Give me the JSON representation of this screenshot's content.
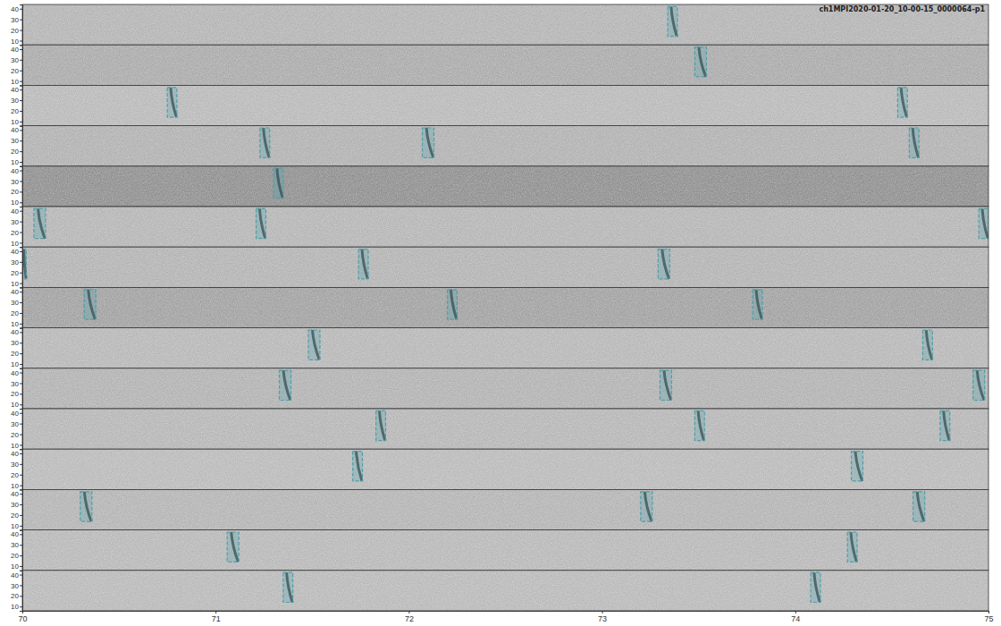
{
  "chart_data": {
    "type": "spectrogram",
    "title": "ch1MPI2020-01-20_10-00-15_0000064-p1",
    "xlim": [
      70,
      75
    ],
    "xticks": [
      70,
      71,
      72,
      73,
      74,
      75
    ],
    "ylim": [
      6,
      44
    ],
    "yticks": [
      10,
      20,
      30,
      40
    ],
    "rows": [
      {
        "detections": [
          {
            "start": 73.34,
            "end": 73.39,
            "low": 14,
            "high": 42
          }
        ]
      },
      {
        "detections": [
          {
            "start": 73.48,
            "end": 73.54,
            "low": 14,
            "high": 42
          }
        ]
      },
      {
        "detections": [
          {
            "start": 70.75,
            "end": 70.8,
            "low": 14,
            "high": 42
          },
          {
            "start": 74.53,
            "end": 74.58,
            "low": 14,
            "high": 42
          }
        ]
      },
      {
        "detections": [
          {
            "start": 71.23,
            "end": 71.28,
            "low": 14,
            "high": 42
          },
          {
            "start": 72.07,
            "end": 72.13,
            "low": 14,
            "high": 42
          },
          {
            "start": 74.59,
            "end": 74.64,
            "low": 14,
            "high": 42
          }
        ]
      },
      {
        "detections": [
          {
            "start": 71.3,
            "end": 71.35,
            "low": 14,
            "high": 42
          }
        ]
      },
      {
        "detections": [
          {
            "start": 70.06,
            "end": 70.12,
            "low": 14,
            "high": 42
          },
          {
            "start": 71.21,
            "end": 71.26,
            "low": 14,
            "high": 42
          },
          {
            "start": 74.95,
            "end": 75.0,
            "low": 14,
            "high": 42
          }
        ]
      },
      {
        "detections": [
          {
            "start": 70.0,
            "end": 70.02,
            "low": 14,
            "high": 42
          },
          {
            "start": 71.74,
            "end": 71.79,
            "low": 14,
            "high": 42
          },
          {
            "start": 73.29,
            "end": 73.35,
            "low": 14,
            "high": 42
          }
        ]
      },
      {
        "detections": [
          {
            "start": 70.32,
            "end": 70.38,
            "low": 14,
            "high": 42
          },
          {
            "start": 72.2,
            "end": 72.25,
            "low": 14,
            "high": 42
          },
          {
            "start": 73.78,
            "end": 73.83,
            "low": 14,
            "high": 42
          }
        ]
      },
      {
        "detections": [
          {
            "start": 71.48,
            "end": 71.54,
            "low": 14,
            "high": 42
          },
          {
            "start": 74.66,
            "end": 74.71,
            "low": 14,
            "high": 42
          }
        ]
      },
      {
        "detections": [
          {
            "start": 71.33,
            "end": 71.39,
            "low": 14,
            "high": 42
          },
          {
            "start": 73.3,
            "end": 73.36,
            "low": 14,
            "high": 42
          },
          {
            "start": 74.92,
            "end": 74.98,
            "low": 14,
            "high": 42
          }
        ]
      },
      {
        "detections": [
          {
            "start": 71.83,
            "end": 71.88,
            "low": 14,
            "high": 42
          },
          {
            "start": 73.48,
            "end": 73.53,
            "low": 14,
            "high": 42
          },
          {
            "start": 74.75,
            "end": 74.8,
            "low": 14,
            "high": 42
          }
        ]
      },
      {
        "detections": [
          {
            "start": 71.71,
            "end": 71.76,
            "low": 14,
            "high": 42
          },
          {
            "start": 74.29,
            "end": 74.35,
            "low": 14,
            "high": 42
          }
        ]
      },
      {
        "detections": [
          {
            "start": 70.3,
            "end": 70.36,
            "low": 14,
            "high": 42
          },
          {
            "start": 73.2,
            "end": 73.26,
            "low": 14,
            "high": 42
          },
          {
            "start": 74.61,
            "end": 74.67,
            "low": 14,
            "high": 42
          }
        ]
      },
      {
        "detections": [
          {
            "start": 71.06,
            "end": 71.12,
            "low": 14,
            "high": 42
          },
          {
            "start": 74.27,
            "end": 74.32,
            "low": 14,
            "high": 42
          }
        ]
      },
      {
        "detections": [
          {
            "start": 71.35,
            "end": 71.4,
            "low": 14,
            "high": 42
          },
          {
            "start": 74.08,
            "end": 74.13,
            "low": 14,
            "high": 42
          }
        ]
      }
    ]
  }
}
